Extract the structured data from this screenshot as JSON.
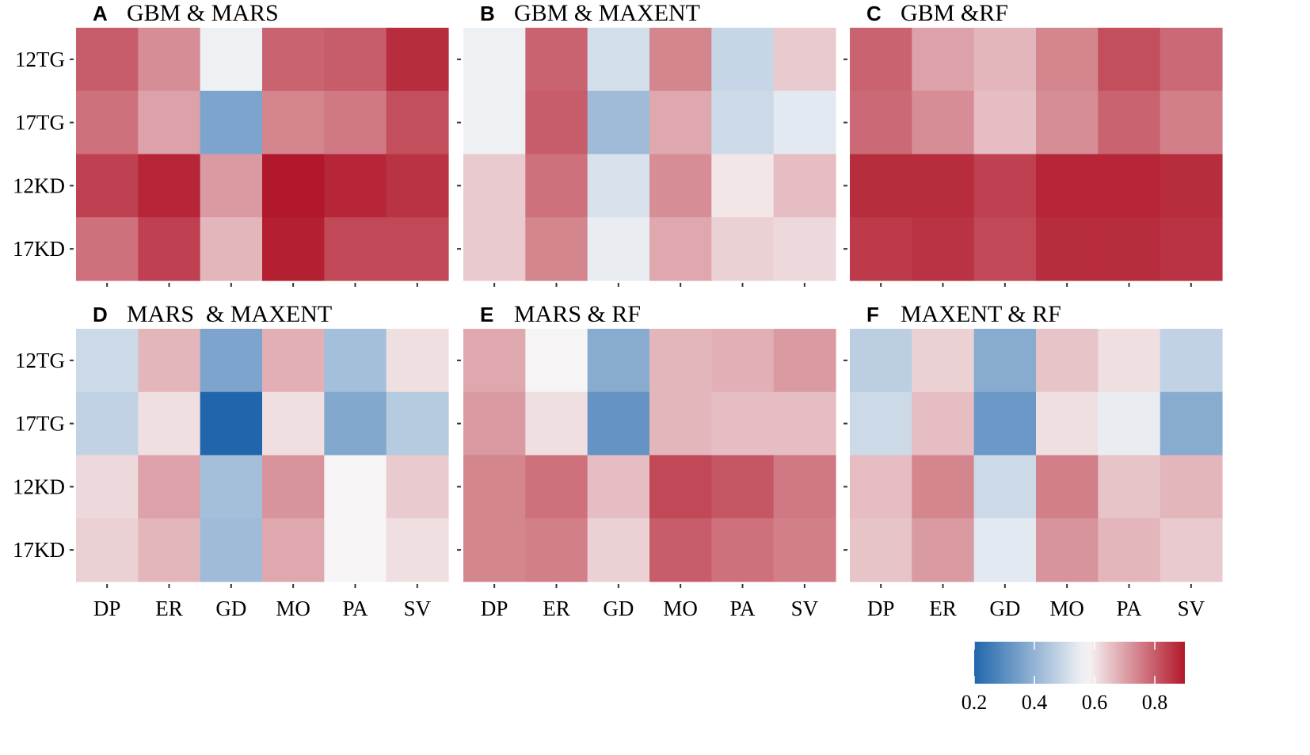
{
  "chart_data": {
    "type": "heatmap",
    "categories_x": [
      "DP",
      "ER",
      "GD",
      "MO",
      "PA",
      "SV"
    ],
    "categories_y": [
      "12TG",
      "17TG",
      "12KD",
      "17KD"
    ],
    "colorbar": {
      "min": 0.2,
      "max": 0.9,
      "midpoint": 0.575,
      "ticks": [
        "0.2",
        "0.4",
        "0.6",
        "0.8"
      ],
      "colors": {
        "low": "#2166ac",
        "mid": "#f7f7f7",
        "high": "#b2182b"
      }
    },
    "panels": [
      {
        "letter": "A",
        "title": "GBM & MARS",
        "values": [
          [
            0.8,
            0.73,
            0.56,
            0.79,
            0.8,
            0.87
          ],
          [
            0.77,
            0.7,
            0.36,
            0.74,
            0.76,
            0.82
          ],
          [
            0.84,
            0.88,
            0.71,
            0.9,
            0.88,
            0.86
          ],
          [
            0.77,
            0.84,
            0.67,
            0.89,
            0.83,
            0.83
          ]
        ]
      },
      {
        "letter": "B",
        "title": "GBM & MAXENT",
        "values": [
          [
            0.56,
            0.79,
            0.51,
            0.74,
            0.49,
            0.64
          ],
          [
            0.56,
            0.8,
            0.42,
            0.69,
            0.5,
            0.54
          ],
          [
            0.64,
            0.77,
            0.52,
            0.73,
            0.6,
            0.66
          ],
          [
            0.64,
            0.74,
            0.55,
            0.69,
            0.63,
            0.62
          ]
        ]
      },
      {
        "letter": "C",
        "title": "GBM &RF",
        "values": [
          [
            0.79,
            0.7,
            0.67,
            0.74,
            0.82,
            0.78
          ],
          [
            0.78,
            0.73,
            0.66,
            0.73,
            0.79,
            0.75
          ],
          [
            0.87,
            0.87,
            0.84,
            0.88,
            0.88,
            0.87
          ],
          [
            0.85,
            0.86,
            0.83,
            0.87,
            0.87,
            0.86
          ]
        ]
      },
      {
        "letter": "D",
        "title": "MARS  & MAXENT",
        "values": [
          [
            0.5,
            0.67,
            0.36,
            0.68,
            0.43,
            0.61
          ],
          [
            0.48,
            0.61,
            0.2,
            0.61,
            0.37,
            0.46
          ],
          [
            0.62,
            0.7,
            0.43,
            0.72,
            0.58,
            0.64
          ],
          [
            0.63,
            0.67,
            0.42,
            0.69,
            0.58,
            0.61
          ]
        ]
      },
      {
        "letter": "E",
        "title": "MARS & RF",
        "values": [
          [
            0.69,
            0.58,
            0.38,
            0.67,
            0.68,
            0.71
          ],
          [
            0.71,
            0.61,
            0.32,
            0.67,
            0.66,
            0.66
          ],
          [
            0.74,
            0.77,
            0.66,
            0.83,
            0.81,
            0.76
          ],
          [
            0.74,
            0.75,
            0.63,
            0.8,
            0.77,
            0.75
          ]
        ]
      },
      {
        "letter": "F",
        "title": "MAXENT & RF",
        "values": [
          [
            0.47,
            0.63,
            0.38,
            0.65,
            0.61,
            0.48
          ],
          [
            0.5,
            0.66,
            0.33,
            0.61,
            0.55,
            0.38
          ],
          [
            0.66,
            0.74,
            0.5,
            0.75,
            0.65,
            0.67
          ],
          [
            0.65,
            0.71,
            0.54,
            0.72,
            0.67,
            0.64
          ]
        ]
      }
    ]
  }
}
